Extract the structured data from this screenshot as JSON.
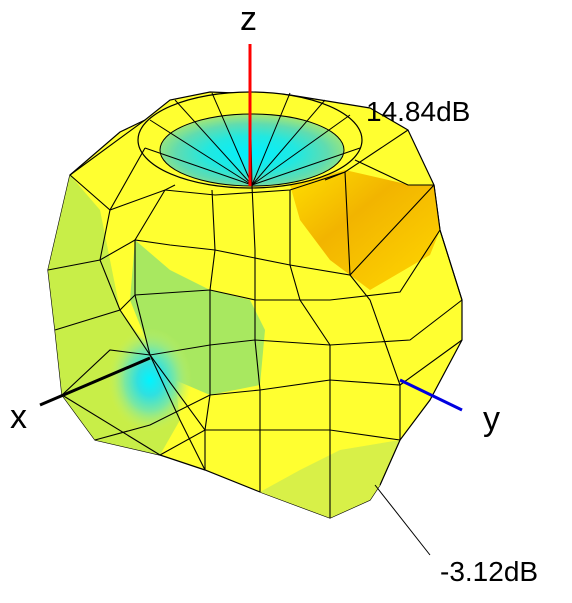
{
  "axes": {
    "x_label": "x",
    "y_label": "y",
    "z_label": "z"
  },
  "scale": {
    "max_label": "14.84dB",
    "min_label": "-3.12dB"
  },
  "colors": {
    "background": "#ffffff",
    "z_axis": "#ff0000",
    "y_axis": "#0000e0",
    "x_axis": "#000000",
    "high_gain": "#f5b800",
    "mid_gain": "#ffff33",
    "mid_low_gain": "#b8f040",
    "low_gain": "#66e0a0",
    "min_gain": "#00e8ff",
    "mesh_lines": "#000000"
  },
  "icons": [
    "radiation-pattern-3d"
  ]
}
